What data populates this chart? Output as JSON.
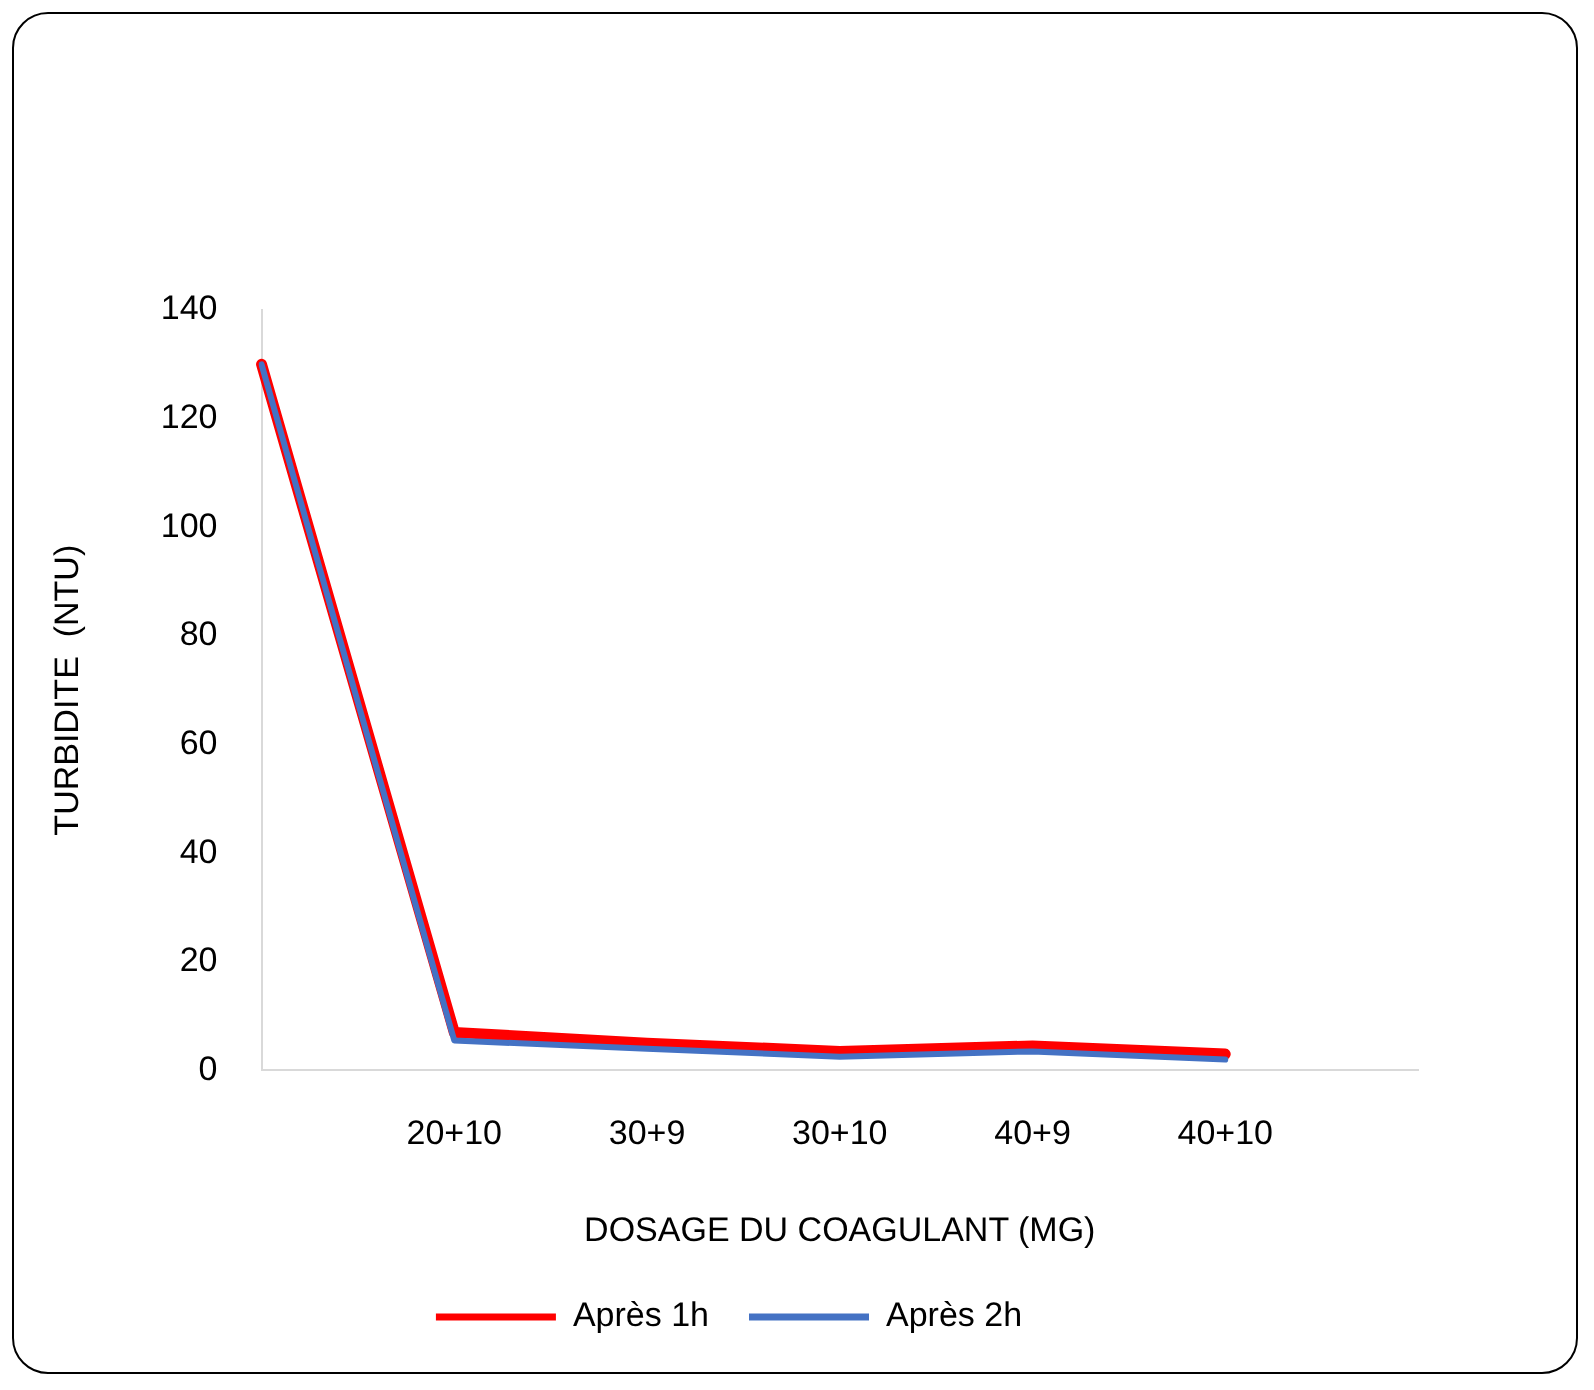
{
  "chart_data": {
    "type": "line",
    "xlabel": "DOSAGE DU COAGULANT (MG)",
    "ylabel": "TURBIDITE  (NTU)",
    "categories": [
      null,
      "20+10",
      "30+9",
      "30+10",
      "40+9",
      "40+10",
      null
    ],
    "series": [
      {
        "name": "Après 1h",
        "color": "#ff0000",
        "values": [
          130,
          7,
          5,
          3.5,
          4.5,
          3,
          null
        ]
      },
      {
        "name": "Après 2h",
        "color": "#4472c4",
        "values": [
          130,
          5.5,
          4,
          2.5,
          3.5,
          2,
          null
        ]
      }
    ],
    "ylim": [
      0,
      140
    ],
    "yticks": [
      0,
      20,
      40,
      60,
      80,
      100,
      120,
      140
    ],
    "grid": false,
    "legend": "bottom",
    "marker": "none",
    "line_style": "solid"
  }
}
